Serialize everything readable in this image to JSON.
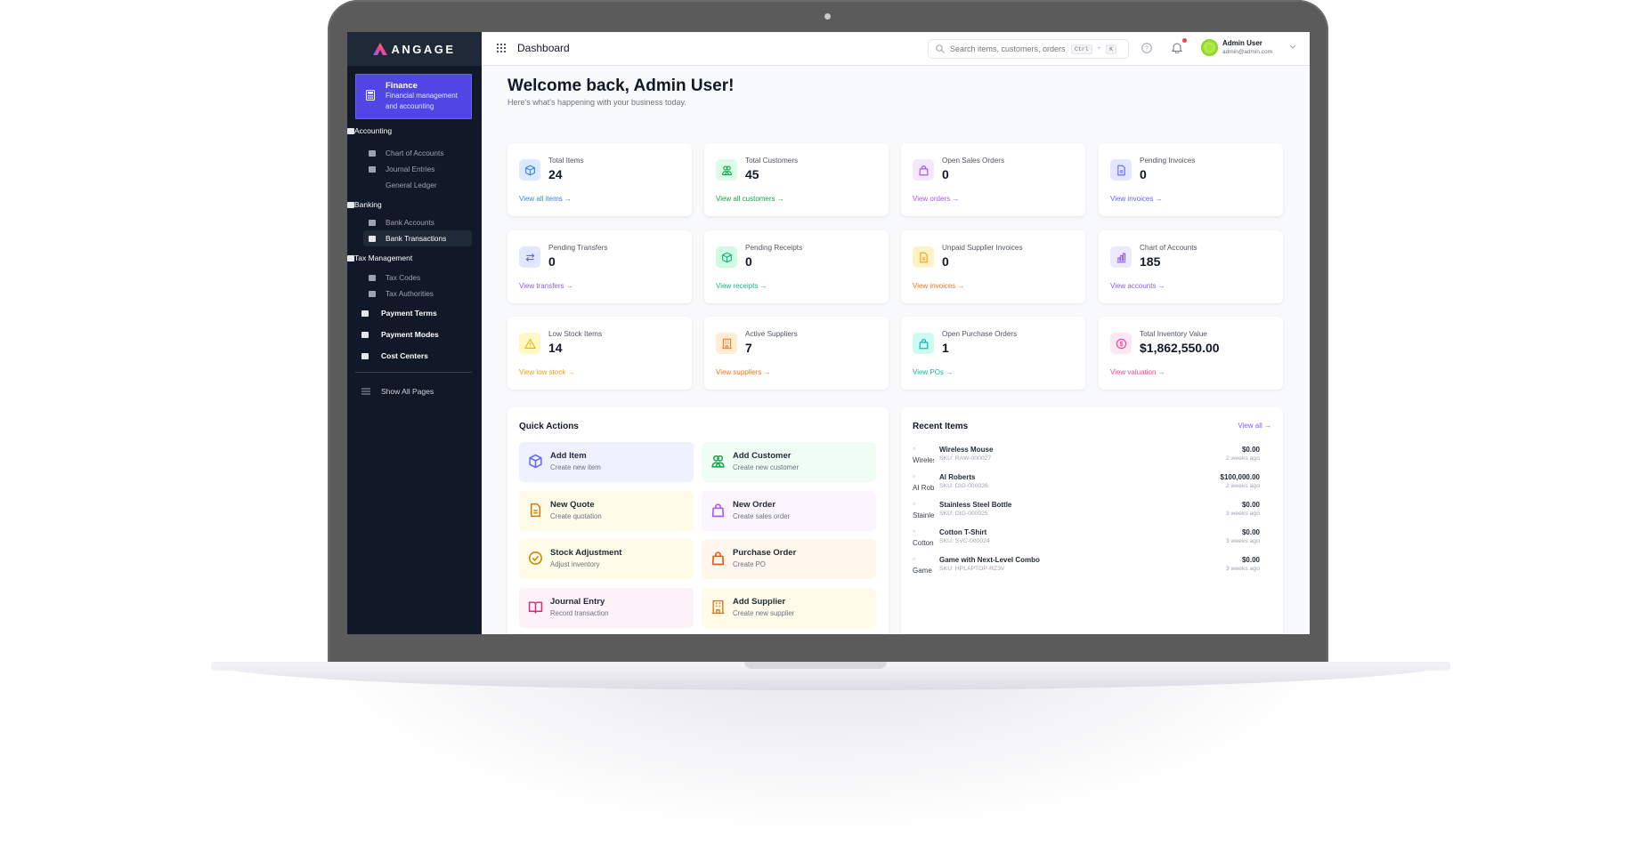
{
  "app": {
    "brand": "ANGAGE",
    "page_title": "Dashboard"
  },
  "sidebar": {
    "module": {
      "title": "Finance",
      "desc_line1": "Financial management",
      "desc_line2": "and accounting"
    },
    "items": [
      {
        "label": "Accounting",
        "type": "group",
        "icon": "calculator-icon"
      },
      {
        "label": "Chart of Accounts",
        "type": "sub",
        "icon": "list-icon"
      },
      {
        "label": "Journal Entries",
        "type": "sub",
        "icon": "book-icon"
      },
      {
        "label": "General Ledger",
        "type": "sub",
        "icon": ""
      },
      {
        "label": "Banking",
        "type": "group",
        "icon": "bank-icon"
      },
      {
        "label": "Bank Accounts",
        "type": "sub",
        "icon": "piggy-bank-icon"
      },
      {
        "label": "Bank Transactions",
        "type": "sub",
        "icon": "transfer-icon",
        "active": true
      },
      {
        "label": "Tax Management",
        "type": "group",
        "icon": "percent-icon"
      },
      {
        "label": "Tax Codes",
        "type": "sub",
        "icon": "tag-icon"
      },
      {
        "label": "Tax Authorities",
        "type": "sub",
        "icon": "bank-icon"
      },
      {
        "label": "Payment Terms",
        "type": "plain",
        "icon": "credit-card-icon"
      },
      {
        "label": "Payment Modes",
        "type": "plain",
        "icon": "money-icon"
      },
      {
        "label": "Cost Centers",
        "type": "plain",
        "icon": "building-icon"
      }
    ],
    "show_all": "Show All Pages"
  },
  "header": {
    "search_placeholder": "Search items, customers, orders...",
    "shortcut_1": "Ctrl",
    "shortcut_plus": "+",
    "shortcut_2": "K",
    "user_name": "Admin User",
    "user_email": "admin@admin.com"
  },
  "welcome": {
    "title": "Welcome back, Admin User!",
    "subtitle": "Here's what's happening with your business today."
  },
  "stats": [
    {
      "label": "Total Items",
      "value": "24",
      "link": "View all items →",
      "icon": "cube",
      "color": "#3b82f6",
      "bg": "#dbeafe"
    },
    {
      "label": "Total Customers",
      "value": "45",
      "link": "View all customers →",
      "icon": "users",
      "color": "#16a34a",
      "bg": "#dcfce7"
    },
    {
      "label": "Open Sales Orders",
      "value": "0",
      "link": "View orders →",
      "icon": "bag",
      "color": "#a855f7",
      "bg": "#f3e8ff"
    },
    {
      "label": "Pending Invoices",
      "value": "0",
      "link": "View invoices →",
      "icon": "doc",
      "color": "#6366f1",
      "bg": "#e0e7ff"
    },
    {
      "label": "Pending Transfers",
      "value": "0",
      "link": "View transfers →",
      "icon": "arrows",
      "color": "#6366f1",
      "bg": "#e0e7ff",
      "link_color": "#8b5cf6"
    },
    {
      "label": "Pending Receipts",
      "value": "0",
      "link": "View receipts →",
      "icon": "cube",
      "color": "#10b981",
      "bg": "#d1fae5"
    },
    {
      "label": "Unpaid Supplier Invoices",
      "value": "0",
      "link": "View invoices →",
      "icon": "doc",
      "color": "#f59e0b",
      "bg": "#fef3c7",
      "link_color": "#f97316"
    },
    {
      "label": "Chart of Accounts",
      "value": "185",
      "link": "View accounts →",
      "icon": "chart",
      "color": "#8b5cf6",
      "bg": "#ede9fe"
    },
    {
      "label": "Low Stock Items",
      "value": "14",
      "link": "View low stock →",
      "icon": "warning",
      "color": "#eab308",
      "bg": "#fef9c3",
      "link_color": "#f59e0b"
    },
    {
      "label": "Active Suppliers",
      "value": "7",
      "link": "View suppliers →",
      "icon": "building",
      "color": "#f97316",
      "bg": "#ffedd5"
    },
    {
      "label": "Open Purchase Orders",
      "value": "1",
      "link": "View POs →",
      "icon": "bag",
      "color": "#14b8a6",
      "bg": "#ccfbf1"
    },
    {
      "label": "Total Inventory Value",
      "value": "$1,862,550.00",
      "link": "View valuation →",
      "icon": "dollar",
      "color": "#ec4899",
      "bg": "#fce7f3"
    }
  ],
  "quick_actions": {
    "title": "Quick Actions",
    "items": [
      {
        "title": "Add Item",
        "desc": "Create new item",
        "icon": "cube",
        "color": "#6366f1",
        "bg": "#eef2ff"
      },
      {
        "title": "Add Customer",
        "desc": "Create new customer",
        "icon": "users",
        "color": "#16a34a",
        "bg": "#f0fdf4"
      },
      {
        "title": "New Quote",
        "desc": "Create quotation",
        "icon": "doc",
        "color": "#d97706",
        "bg": "#fefce8"
      },
      {
        "title": "New Order",
        "desc": "Create sales order",
        "icon": "bag",
        "color": "#a855f7",
        "bg": "#faf5ff"
      },
      {
        "title": "Stock Adjustment",
        "desc": "Adjust inventory",
        "icon": "check",
        "color": "#ca8a04",
        "bg": "#fefce8"
      },
      {
        "title": "Purchase Order",
        "desc": "Create PO",
        "icon": "bag",
        "color": "#ea580c",
        "bg": "#fff7ed"
      },
      {
        "title": "Journal Entry",
        "desc": "Record transaction",
        "icon": "book",
        "color": "#db2777",
        "bg": "#fdf2f8"
      },
      {
        "title": "Add Supplier",
        "desc": "Create new supplier",
        "icon": "building",
        "color": "#d97706",
        "bg": "#fefce8"
      }
    ]
  },
  "recent_items": {
    "title": "Recent Items",
    "view_all": "View all →",
    "items": [
      {
        "alt": "Wireless Mouse",
        "name": "Wireless Mouse",
        "sku": "SKU: RAW-000027",
        "price": "$0.00",
        "age": "2 weeks ago"
      },
      {
        "alt": "AI Roberts",
        "name": "Al Roberts",
        "sku": "SKU: DIG-000026",
        "price": "$100,000.00",
        "age": "2 weeks ago"
      },
      {
        "alt": "Stainless Steel Bottle",
        "name": "Stainless Steel Bottle",
        "sku": "SKU: DIG-000025",
        "price": "$0.00",
        "age": "3 weeks ago"
      },
      {
        "alt": "Cotton T-Shirt",
        "name": "Cotton T-Shirt",
        "sku": "SKU: SVC-000024",
        "price": "$0.00",
        "age": "3 weeks ago"
      },
      {
        "alt": "Game with Next-Level Combo",
        "name": "Game with Next-Level Combo",
        "sku": "SKU: HPLAPTOP-RZ3V",
        "price": "$0.00",
        "age": "3 weeks ago"
      }
    ]
  }
}
